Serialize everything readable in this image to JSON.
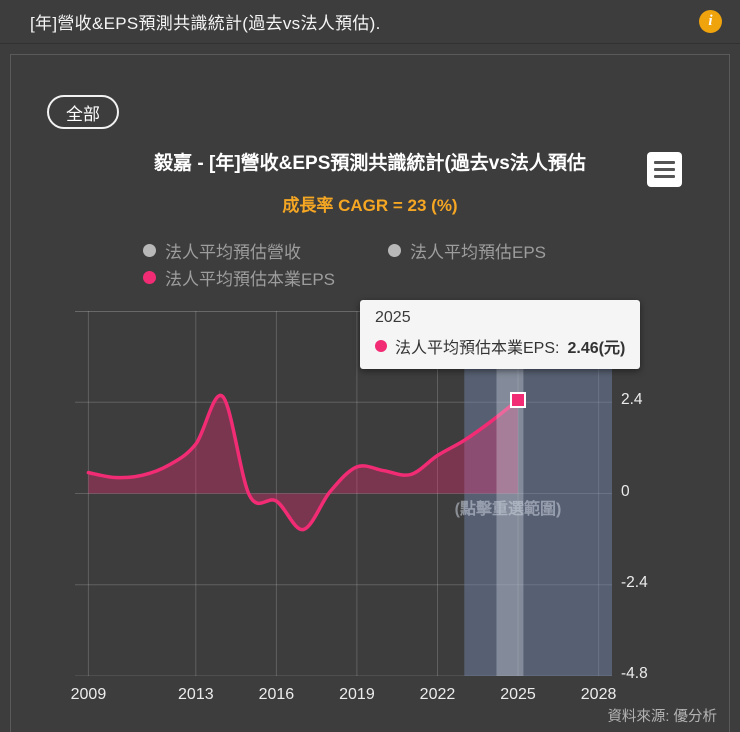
{
  "header": {
    "title": "[年]營收&EPS預測共識統計(過去vs法人預估).",
    "info_icon": "i"
  },
  "filter": {
    "all_label": "全部"
  },
  "chart": {
    "title": "毅嘉 - [年]營收&EPS預測共識統計(過去vs法人預估",
    "subtitle": "成長率 CAGR = 23 (%)",
    "legend": [
      {
        "label": "法人平均預估營收",
        "color": "#b8b8b8"
      },
      {
        "label": "法人平均預估EPS",
        "color": "#b8b8b8"
      },
      {
        "label": "法人平均預估本業EPS",
        "color": "#f22c74"
      }
    ],
    "tooltip": {
      "year": "2025",
      "series_label": "法人平均預估本業EPS:",
      "value": "2.46(元)",
      "dot_color": "#f22c74"
    },
    "selection_hint": "(點擊重選範圍)",
    "source": "資料來源: 優分析"
  },
  "chart_data": {
    "type": "line",
    "title": "毅嘉 - [年]營收&EPS預測共識統計(過去vs法人預估)",
    "subtitle": "成長率 CAGR = 23 (%)",
    "x": [
      2009,
      2010,
      2011,
      2012,
      2013,
      2014,
      2015,
      2016,
      2017,
      2018,
      2019,
      2020,
      2021,
      2022,
      2023,
      2024,
      2025
    ],
    "series": [
      {
        "name": "法人平均預估本業EPS",
        "color": "#f22c74",
        "area_fill": "rgba(242,44,116,0.35)",
        "values": [
          0.55,
          0.42,
          0.48,
          0.75,
          1.3,
          2.55,
          -0.05,
          -0.2,
          -0.95,
          0.05,
          0.7,
          0.6,
          0.5,
          1.0,
          1.4,
          1.9,
          2.46
        ]
      }
    ],
    "xticks": [
      2009,
      2013,
      2016,
      2019,
      2022,
      2025,
      2028
    ],
    "yticks": [
      2.4,
      0,
      -2.4,
      -4.8
    ],
    "ygrid": [
      4.8,
      2.4,
      0,
      -2.4,
      -4.8
    ],
    "xlim": [
      2008.5,
      2028.5
    ],
    "ylim": [
      -4.8,
      4.8
    ],
    "grid_color": "rgba(255,255,255,0.18)",
    "grid_top_color": "rgba(255,255,255,0.45)",
    "selection_band": {
      "from": 2023,
      "to": 2028.5,
      "color": "rgba(120,140,180,0.45)"
    },
    "highlight_band": {
      "from": 2024.2,
      "to": 2025.2,
      "color": "rgba(225,230,240,0.32)"
    },
    "marker": {
      "x": 2025,
      "y": 2.46
    },
    "legend_position": "top",
    "grid": true
  }
}
